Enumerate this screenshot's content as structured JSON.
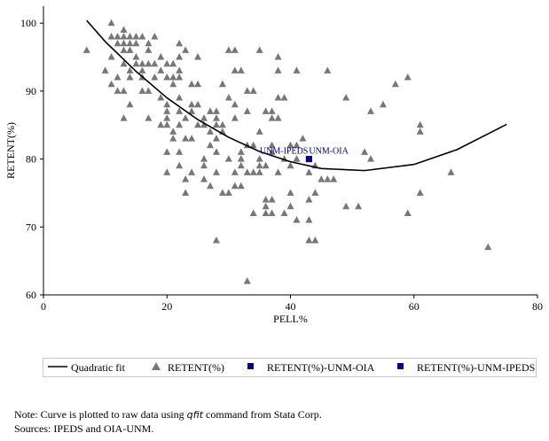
{
  "chart_data": {
    "type": "scatter",
    "xlabel": "PELL%",
    "ylabel": "RETENT(%)",
    "xlim": [
      0,
      80
    ],
    "ylim": [
      60,
      102.5
    ],
    "xticks": [
      0,
      20,
      40,
      60,
      80
    ],
    "yticks": [
      60,
      70,
      80,
      90,
      100
    ],
    "grid": false,
    "legend_position": "bottom",
    "series": [
      {
        "name": "RETENT(%)",
        "marker": "triangle",
        "color": "#777777",
        "points": [
          [
            11,
            100
          ],
          [
            7,
            96
          ],
          [
            10,
            93
          ],
          [
            11,
            91
          ],
          [
            11,
            98
          ],
          [
            12,
            98
          ],
          [
            13,
            98
          ],
          [
            14,
            98
          ],
          [
            15,
            98
          ],
          [
            16,
            98
          ],
          [
            18,
            98
          ],
          [
            12,
            97
          ],
          [
            13,
            97
          ],
          [
            14,
            97
          ],
          [
            15,
            97
          ],
          [
            17,
            97
          ],
          [
            22,
            97
          ],
          [
            13,
            99
          ],
          [
            11,
            95
          ],
          [
            13,
            96
          ],
          [
            14,
            96
          ],
          [
            17,
            96
          ],
          [
            23,
            96
          ],
          [
            30,
            96
          ],
          [
            31,
            96
          ],
          [
            35,
            96
          ],
          [
            15,
            95
          ],
          [
            19,
            95
          ],
          [
            22,
            95
          ],
          [
            25,
            95
          ],
          [
            38,
            95
          ],
          [
            13,
            94
          ],
          [
            15,
            94
          ],
          [
            16,
            94
          ],
          [
            17,
            94
          ],
          [
            18,
            94
          ],
          [
            20,
            94
          ],
          [
            21,
            94
          ],
          [
            14,
            93
          ],
          [
            16,
            93
          ],
          [
            19,
            93
          ],
          [
            22,
            93
          ],
          [
            31,
            93
          ],
          [
            32,
            93
          ],
          [
            38,
            93
          ],
          [
            41,
            93
          ],
          [
            46,
            93
          ],
          [
            12,
            92
          ],
          [
            14,
            92
          ],
          [
            16,
            92
          ],
          [
            18,
            92
          ],
          [
            20,
            92
          ],
          [
            21,
            92
          ],
          [
            22,
            92
          ],
          [
            59,
            92
          ],
          [
            21,
            91
          ],
          [
            24,
            91
          ],
          [
            25,
            91
          ],
          [
            29,
            91
          ],
          [
            57,
            91
          ],
          [
            12,
            90
          ],
          [
            13,
            90
          ],
          [
            16,
            90
          ],
          [
            17,
            90
          ],
          [
            33,
            90
          ],
          [
            34,
            90
          ],
          [
            19,
            89
          ],
          [
            22,
            89
          ],
          [
            30,
            89
          ],
          [
            38,
            89
          ],
          [
            39,
            89
          ],
          [
            49,
            89
          ],
          [
            14,
            88
          ],
          [
            20,
            88
          ],
          [
            24,
            88
          ],
          [
            25,
            88
          ],
          [
            31,
            88
          ],
          [
            55,
            88
          ],
          [
            20,
            87
          ],
          [
            22,
            87
          ],
          [
            24,
            87
          ],
          [
            27,
            87
          ],
          [
            28,
            87
          ],
          [
            33,
            87
          ],
          [
            36,
            87
          ],
          [
            37,
            87
          ],
          [
            53,
            87
          ],
          [
            13,
            86
          ],
          [
            17,
            86
          ],
          [
            20,
            86
          ],
          [
            23,
            86
          ],
          [
            26,
            86
          ],
          [
            28,
            86
          ],
          [
            31,
            86
          ],
          [
            37,
            86
          ],
          [
            38,
            86
          ],
          [
            19,
            85
          ],
          [
            20,
            85
          ],
          [
            22,
            85
          ],
          [
            25,
            85
          ],
          [
            26,
            85
          ],
          [
            28,
            85
          ],
          [
            29,
            85
          ],
          [
            61,
            85
          ],
          [
            21,
            84
          ],
          [
            27,
            84
          ],
          [
            29,
            84
          ],
          [
            35,
            84
          ],
          [
            61,
            84
          ],
          [
            21,
            83
          ],
          [
            23,
            83
          ],
          [
            24,
            83
          ],
          [
            28,
            83
          ],
          [
            42,
            83
          ],
          [
            27,
            82
          ],
          [
            33,
            82
          ],
          [
            34,
            82
          ],
          [
            37,
            82
          ],
          [
            40,
            82
          ],
          [
            41,
            82
          ],
          [
            22,
            81
          ],
          [
            20,
            81
          ],
          [
            28,
            81
          ],
          [
            32,
            81
          ],
          [
            37,
            81
          ],
          [
            52,
            81
          ],
          [
            26,
            80
          ],
          [
            30,
            80
          ],
          [
            32,
            80
          ],
          [
            35,
            80
          ],
          [
            39,
            80
          ],
          [
            41,
            80
          ],
          [
            53,
            80
          ],
          [
            22,
            79
          ],
          [
            26,
            79
          ],
          [
            32,
            79
          ],
          [
            35,
            79
          ],
          [
            36,
            79
          ],
          [
            40,
            79
          ],
          [
            44,
            79
          ],
          [
            20,
            78
          ],
          [
            24,
            78
          ],
          [
            28,
            78
          ],
          [
            31,
            78
          ],
          [
            33,
            78
          ],
          [
            34,
            78
          ],
          [
            35,
            78
          ],
          [
            38,
            78
          ],
          [
            43,
            78
          ],
          [
            66,
            78
          ],
          [
            23,
            77
          ],
          [
            26,
            77
          ],
          [
            45,
            77
          ],
          [
            46,
            77
          ],
          [
            47,
            77
          ],
          [
            27,
            76
          ],
          [
            31,
            76
          ],
          [
            32,
            76
          ],
          [
            23,
            75
          ],
          [
            29,
            75
          ],
          [
            30,
            75
          ],
          [
            40,
            75
          ],
          [
            44,
            75
          ],
          [
            61,
            75
          ],
          [
            36,
            74
          ],
          [
            37,
            74
          ],
          [
            43,
            74
          ],
          [
            36,
            73
          ],
          [
            40,
            73
          ],
          [
            49,
            73
          ],
          [
            51,
            73
          ],
          [
            34,
            72
          ],
          [
            36,
            72
          ],
          [
            37,
            72
          ],
          [
            39,
            72
          ],
          [
            59,
            72
          ],
          [
            41,
            71
          ],
          [
            43,
            71
          ],
          [
            28,
            68
          ],
          [
            43,
            68
          ],
          [
            44,
            68
          ],
          [
            72,
            67
          ],
          [
            33,
            62
          ]
        ]
      },
      {
        "name": "RETENT(%)-UNM-OIA",
        "marker": "square",
        "color": "#000080",
        "points": [
          [
            43,
            80
          ]
        ],
        "label": "UNM-OIA"
      },
      {
        "name": "RETENT(%)-UNM-IPEDS",
        "marker": "square",
        "color": "#000080",
        "points": [
          [
            43,
            80
          ]
        ],
        "label": "UNM-IPEDS"
      },
      {
        "name": "Quadratic fit",
        "marker": "line",
        "color": "#000000",
        "points": [
          [
            7,
            100.4
          ],
          [
            10,
            97.3
          ],
          [
            15,
            92.9
          ],
          [
            20,
            89.0
          ],
          [
            25,
            85.8
          ],
          [
            30,
            83.2
          ],
          [
            35,
            81.1
          ],
          [
            40,
            79.6
          ],
          [
            45,
            78.6
          ],
          [
            52,
            78.3
          ],
          [
            60,
            79.2
          ],
          [
            67,
            81.4
          ],
          [
            75,
            85.1
          ]
        ]
      }
    ]
  },
  "legend": [
    {
      "label": "Quadratic fit",
      "symbol": "line"
    },
    {
      "label": "RETENT(%)",
      "symbol": "triangle"
    },
    {
      "label": "RETENT(%)-UNM-OIA",
      "symbol": "square"
    },
    {
      "label": "RETENT(%)-UNM-IPEDS",
      "symbol": "square"
    }
  ],
  "notes": {
    "note_prefix": "Note: Curve is plotted to raw data using ",
    "note_command": "qfit",
    "note_suffix": " command from Stata Corp.",
    "sources": "Sources: IPEDS and OIA-UNM."
  }
}
